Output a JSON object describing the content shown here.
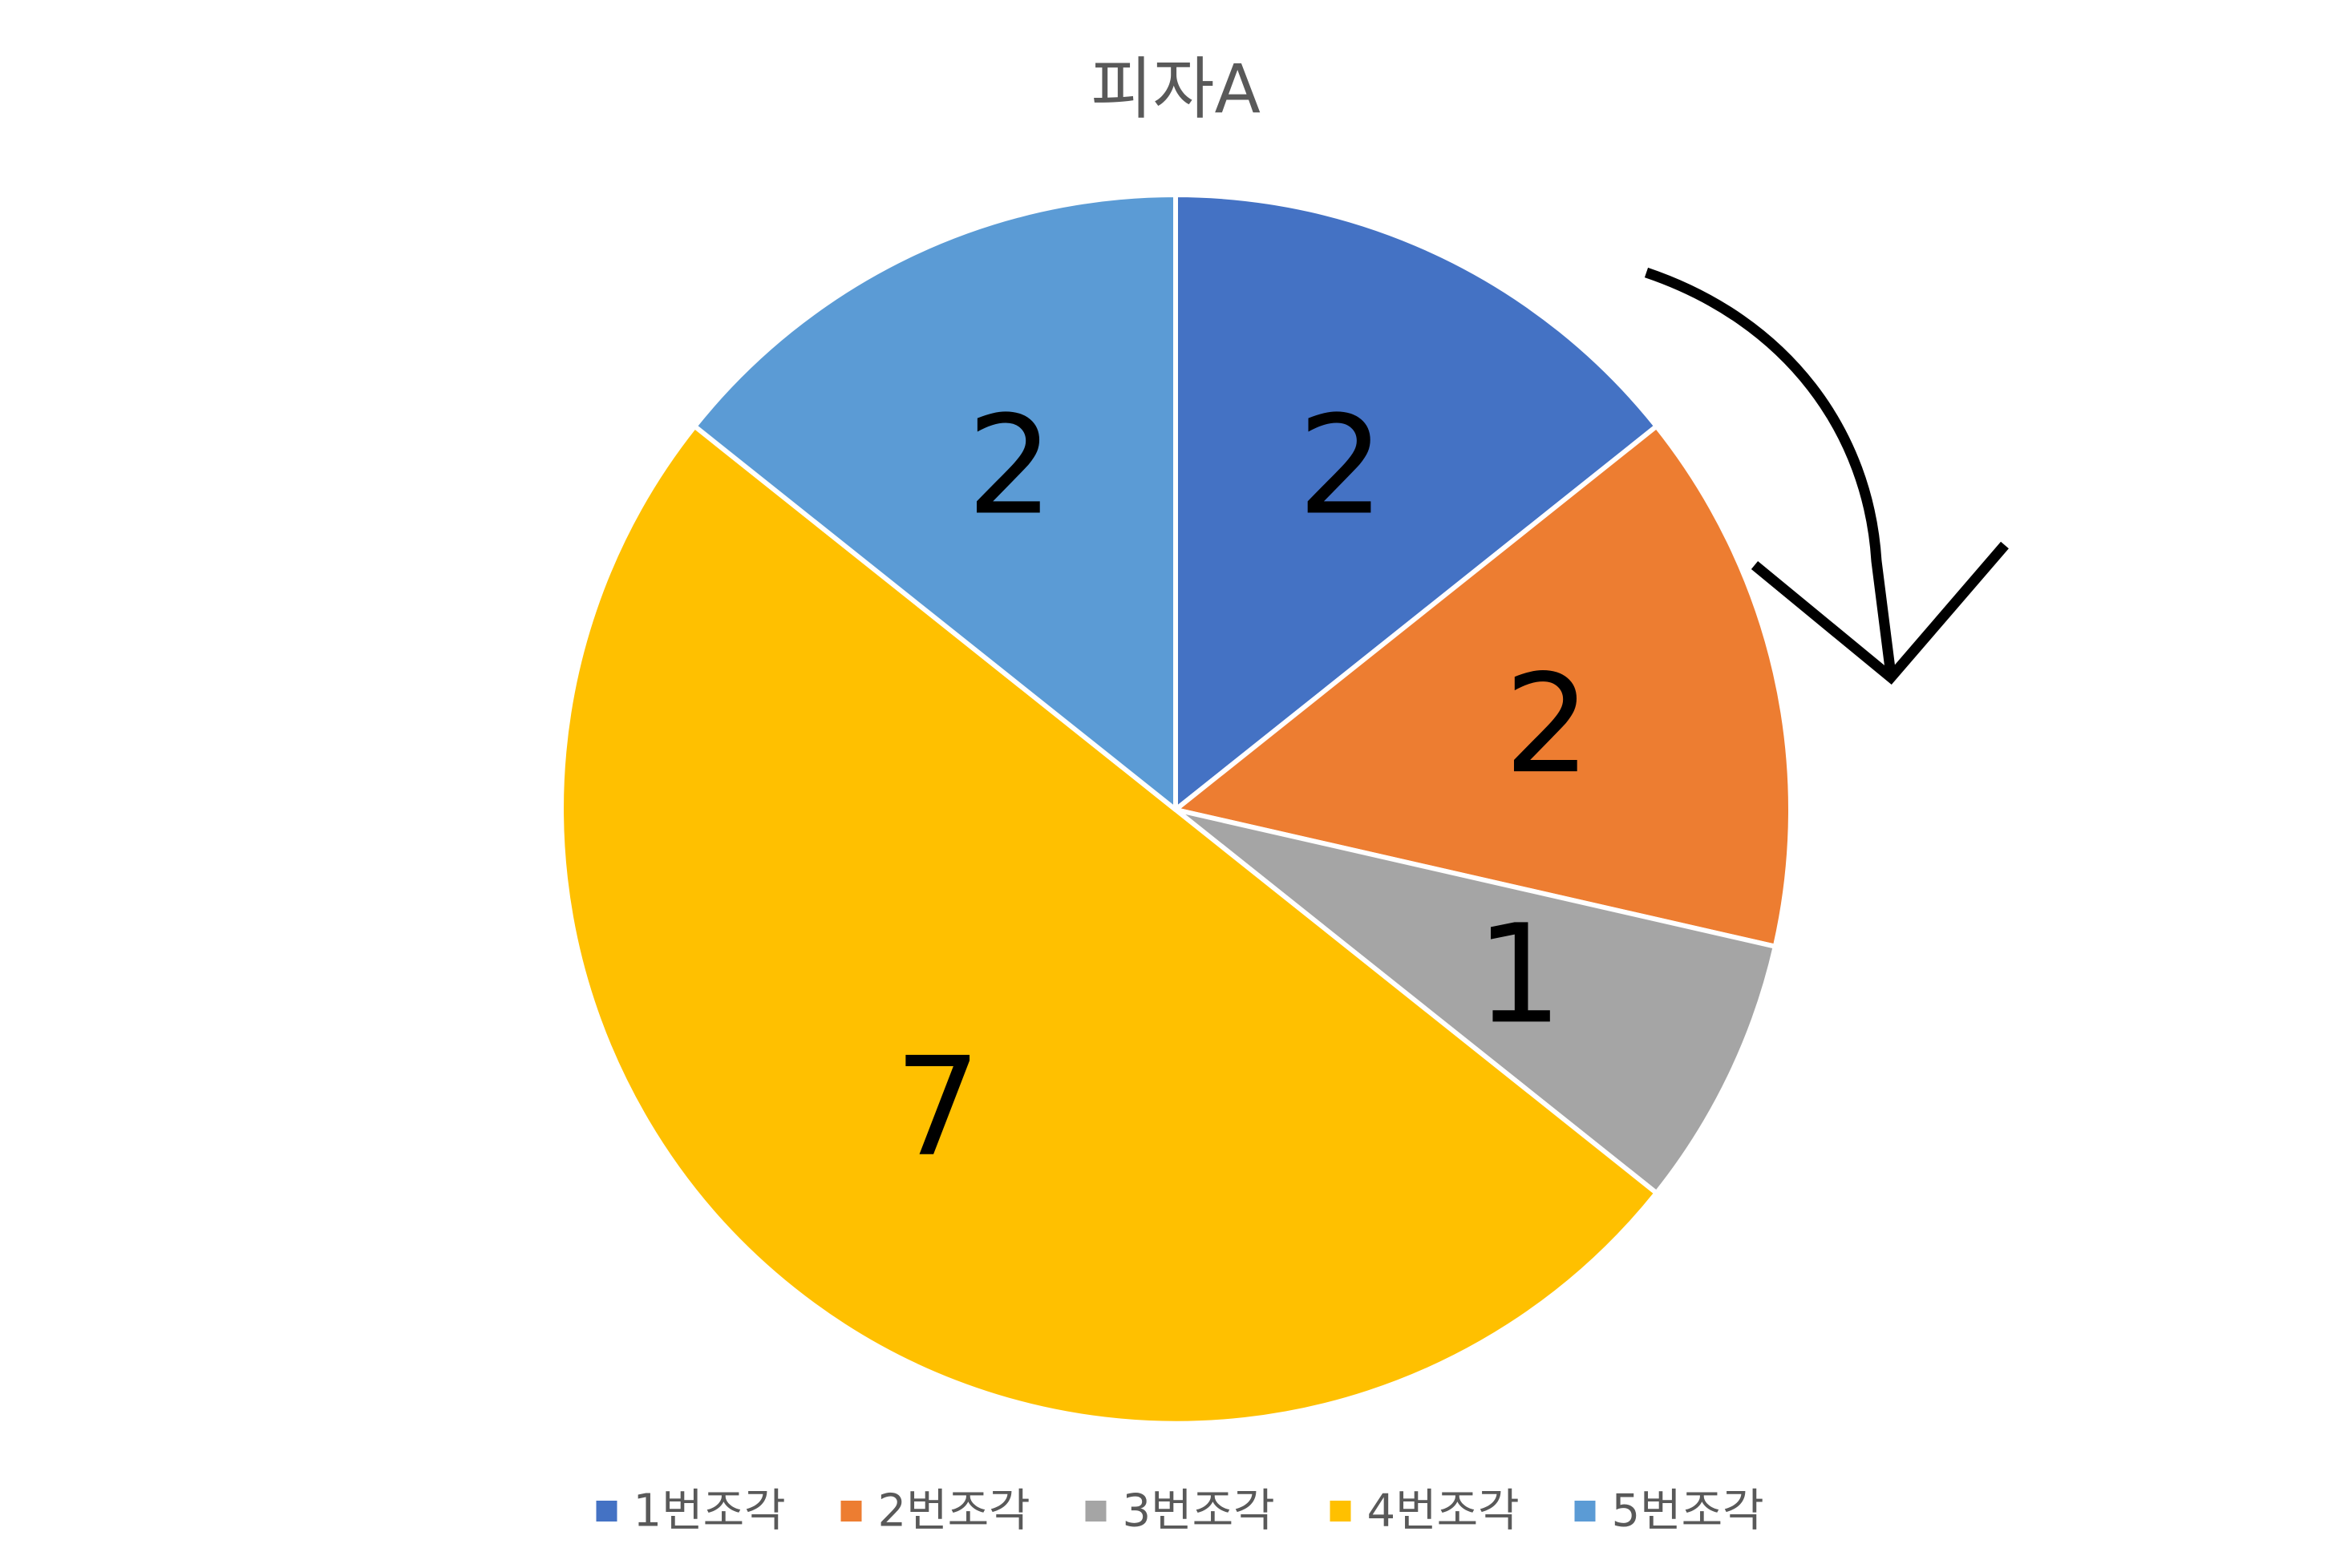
{
  "chart_data": {
    "type": "pie",
    "title": "피자A",
    "categories": [
      "1번조각",
      "2번조각",
      "3번조각",
      "4번조각",
      "5번조각"
    ],
    "values": [
      2,
      2,
      1,
      7,
      2
    ],
    "colors": [
      "#4472C4",
      "#ED7D31",
      "#A5A5A5",
      "#FFC000",
      "#5B9BD5"
    ],
    "data_labels": [
      "2",
      "2",
      "1",
      "7",
      "2"
    ],
    "legend": {
      "position": "bottom",
      "entries": [
        "1번조각",
        "2번조각",
        "3번조각",
        "4번조각",
        "5번조각"
      ]
    },
    "start_angle": "top",
    "direction": "clockwise",
    "annotations": [
      {
        "type": "curved-arrow",
        "meaning": "clockwise"
      }
    ]
  }
}
